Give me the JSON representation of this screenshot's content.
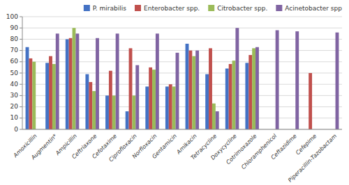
{
  "chart_data": {
    "type": "bar",
    "categories": [
      "Amoxicillin",
      "Augmentin*",
      "Ampicillin",
      "Ceftriaxone",
      "Cefotaxime",
      "Ciprofloxacin",
      "Norfloxacin",
      "Gentamicin",
      "Amikacin",
      "Tetracycline",
      "Doxycycline",
      "Cotrimoxazole",
      "Chloramphenicol",
      "Ceftazidime",
      "Cefepime",
      "Piperacillin-Tazobactam"
    ],
    "series": [
      {
        "name": "P. mirabilis",
        "color": "#4472C4",
        "values": [
          73,
          59,
          80,
          49,
          30,
          16,
          38,
          38,
          76,
          49,
          54,
          59,
          0,
          0,
          0,
          0
        ]
      },
      {
        "name": "Enterobacter spp.",
        "color": "#C0504D",
        "values": [
          63,
          65,
          81,
          42,
          52,
          72,
          55,
          40,
          70,
          72,
          58,
          66,
          0,
          0,
          50,
          0
        ]
      },
      {
        "name": "Citrobacter spp.",
        "color": "#9BBB59",
        "values": [
          60,
          58,
          90,
          34,
          30,
          30,
          53,
          38,
          65,
          23,
          61,
          72,
          0,
          0,
          0,
          0
        ]
      },
      {
        "name": "Acinetobacter spp",
        "color": "#8064A2",
        "values": [
          0,
          85,
          85,
          81,
          85,
          57,
          85,
          68,
          70,
          16,
          90,
          73,
          88,
          87,
          0,
          86
        ]
      }
    ],
    "ylim": [
      0,
      100
    ],
    "yticks": [
      0,
      10,
      20,
      30,
      40,
      50,
      60,
      70,
      80,
      90,
      100
    ],
    "grid": true,
    "legend": "upper right"
  }
}
